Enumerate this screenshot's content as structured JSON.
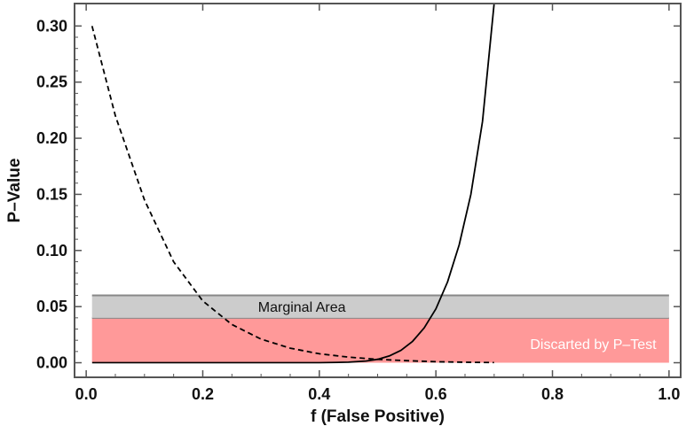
{
  "chart_data": {
    "type": "line",
    "xlabel": "f (False Positive)",
    "ylabel": "P–Value",
    "xlim": [
      -0.02,
      1.02
    ],
    "ylim": [
      -0.013,
      0.32
    ],
    "x_ticks": [
      "0.0",
      "0.2",
      "0.4",
      "0.6",
      "0.8",
      "1.0"
    ],
    "y_ticks": [
      "0.00",
      "0.05",
      "0.10",
      "0.15",
      "0.20",
      "0.25",
      "0.30"
    ],
    "grid": false,
    "regions": [
      {
        "label": "Discarted by P–Test",
        "x_range": [
          0.01,
          1.0
        ],
        "y_range": [
          0.0,
          0.04
        ],
        "color": "#ff9999",
        "text_color": "#ffffff"
      },
      {
        "label": "Marginal Area",
        "x_range": [
          0.01,
          1.0
        ],
        "y_range": [
          0.04,
          0.06
        ],
        "color": "#cccccc",
        "text_color": "#111111"
      }
    ],
    "series": [
      {
        "style": "dashed",
        "color": "#000000",
        "x": [
          0.01,
          0.05,
          0.1,
          0.15,
          0.2,
          0.25,
          0.3,
          0.35,
          0.4,
          0.45,
          0.5,
          0.55,
          0.6,
          0.65,
          0.7
        ],
        "y": [
          0.3,
          0.22,
          0.145,
          0.09,
          0.055,
          0.034,
          0.021,
          0.013,
          0.008,
          0.005,
          0.003,
          0.0018,
          0.0009,
          0.0004,
          0.0001
        ]
      },
      {
        "style": "solid",
        "color": "#000000",
        "x": [
          0.01,
          0.1,
          0.2,
          0.3,
          0.35,
          0.4,
          0.45,
          0.48,
          0.5,
          0.52,
          0.54,
          0.56,
          0.58,
          0.6,
          0.62,
          0.64,
          0.66,
          0.68,
          0.7
        ],
        "y": [
          0.0,
          0.0,
          0.0,
          0.0,
          0.0,
          0.0,
          0.0005,
          0.0015,
          0.003,
          0.006,
          0.011,
          0.019,
          0.031,
          0.048,
          0.072,
          0.105,
          0.15,
          0.215,
          0.32
        ]
      }
    ]
  }
}
